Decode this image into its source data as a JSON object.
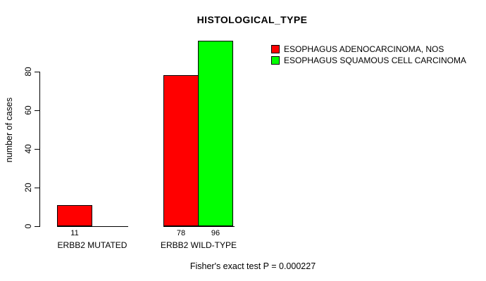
{
  "chart_data": {
    "type": "bar",
    "title": "HISTOLOGICAL_TYPE",
    "ylabel": "number of cases",
    "xlabel": "",
    "categories": [
      "ERBB2 MUTATED",
      "ERBB2 WILD-TYPE"
    ],
    "series": [
      {
        "name": "ESOPHAGUS ADENOCARCINOMA, NOS",
        "color": "#FF0000",
        "values": [
          11,
          78
        ]
      },
      {
        "name": "ESOPHAGUS SQUAMOUS CELL CARCINOMA",
        "color": "#00FF00",
        "values": [
          0,
          96
        ]
      }
    ],
    "bar_value_labels": [
      [
        "11",
        null
      ],
      [
        "78",
        "96"
      ]
    ],
    "yticks": [
      0,
      20,
      40,
      60,
      80
    ],
    "ylim": [
      0,
      96
    ],
    "grid": false,
    "legend_position": "top-right",
    "annotation": "Fisher's exact test P = 0.000227"
  },
  "colors": {
    "background": "#FFFFFF",
    "axis": "#000000",
    "text": "#000000",
    "series_red": "#FF0000",
    "series_green": "#00FF00"
  }
}
